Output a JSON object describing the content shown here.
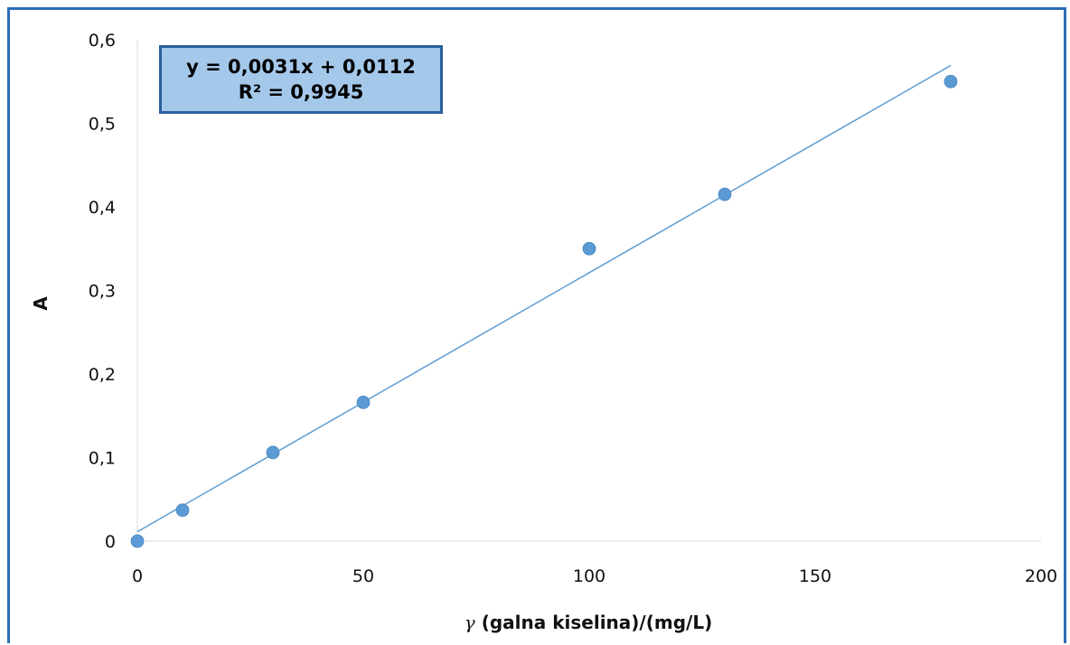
{
  "chart_data": {
    "type": "scatter",
    "title": "",
    "xlabel_symbol": "γ",
    "xlabel": "(galna kiselina)/(mg/L)",
    "ylabel": "A",
    "xlim": [
      0,
      200
    ],
    "ylim": [
      0,
      0.6
    ],
    "x_ticks": [
      0,
      50,
      100,
      150,
      200
    ],
    "y_ticks": [
      0,
      0.1,
      0.2,
      0.3,
      0.4,
      0.5,
      0.6
    ],
    "x_tick_labels": [
      "0",
      "50",
      "100",
      "150",
      "200"
    ],
    "y_tick_labels": [
      "0",
      "0,1",
      "0,2",
      "0,3",
      "0,4",
      "0,5",
      "0,6"
    ],
    "grid": false,
    "legend": "none",
    "series": [
      {
        "x": [
          0,
          10,
          30,
          50,
          100,
          130,
          180
        ],
        "y": [
          0,
          0.037,
          0.106,
          0.166,
          0.35,
          0.415,
          0.55
        ]
      }
    ],
    "trendline": {
      "slope": 0.0031,
      "intercept": 0.0112,
      "x_range": [
        0,
        180
      ],
      "equation": "y = 0,0031x + 0,0112",
      "r_squared": "R² = 0,9945"
    },
    "colors": {
      "marker": "#5b9bd5",
      "trendline": "#5b9bd5",
      "axis": "#d9d9d9",
      "frame": "#2e6cb5",
      "equation_box_fill": "#a4c8ea",
      "equation_box_border": "#2b5f9a"
    }
  }
}
